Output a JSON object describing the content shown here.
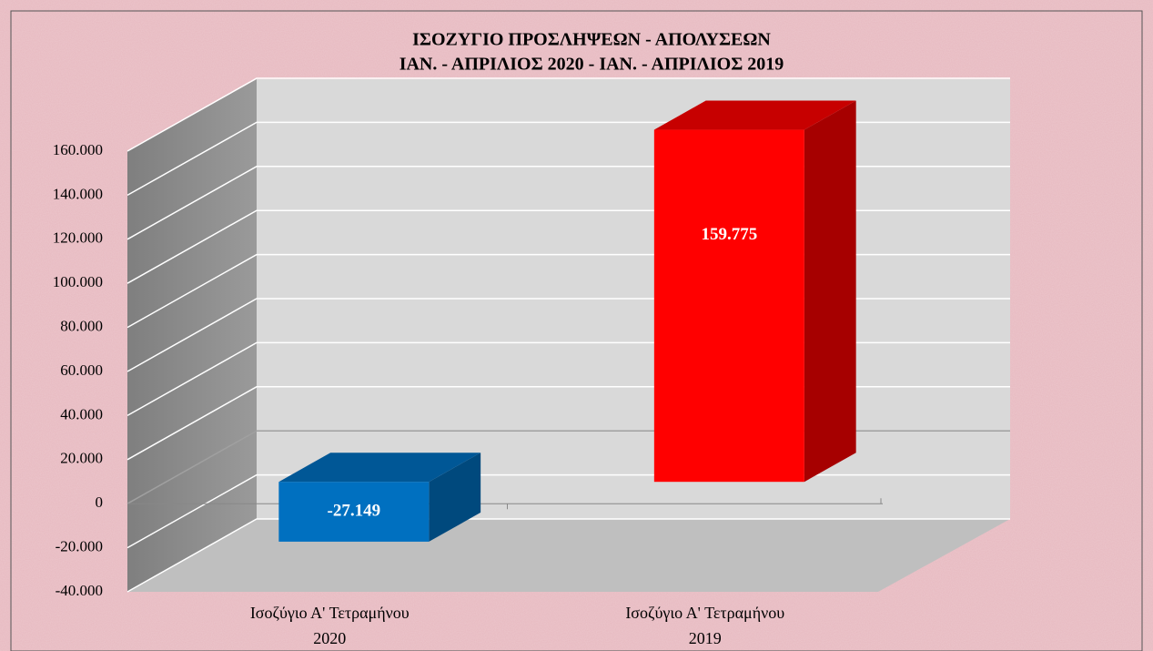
{
  "chart_data": {
    "type": "bar3d",
    "title": "ΙΣΟΖΥΓΙΟ ΠΡΟΣΛΗΨΕΩΝ  - ΑΠΟΛΥΣΕΩΝ",
    "subtitle": "ΙΑΝ. - ΑΠΡΙΛΙΟΣ 2020 -  ΙΑΝ. - ΑΠΡΙΛΙΟΣ 2019",
    "categories": [
      "Ισοζύγιο Α' Τετραμήνου 2020",
      "Ισοζύγιο Α' Τετραμήνου 2019"
    ],
    "values": [
      -27149,
      159775
    ],
    "value_labels": [
      "-27.149",
      "159.775"
    ],
    "colors": [
      "#0070c0",
      "#ff0000"
    ],
    "ylim": [
      -40000,
      160000
    ],
    "yticks": [
      {
        "value": -40000,
        "label": "-40.000"
      },
      {
        "value": -20000,
        "label": "-20.000"
      },
      0,
      {
        "value": 20000,
        "label": "20.000"
      },
      {
        "value": 40000,
        "label": "40.000"
      },
      {
        "value": 60000,
        "label": "60.000"
      },
      {
        "value": 80000,
        "label": "80.000"
      },
      {
        "value": 100000,
        "label": "100.000"
      },
      {
        "value": 120000,
        "label": "120.000"
      },
      {
        "value": 140000,
        "label": "140.000"
      },
      {
        "value": 160000,
        "label": "160.000"
      }
    ],
    "grid": true
  }
}
